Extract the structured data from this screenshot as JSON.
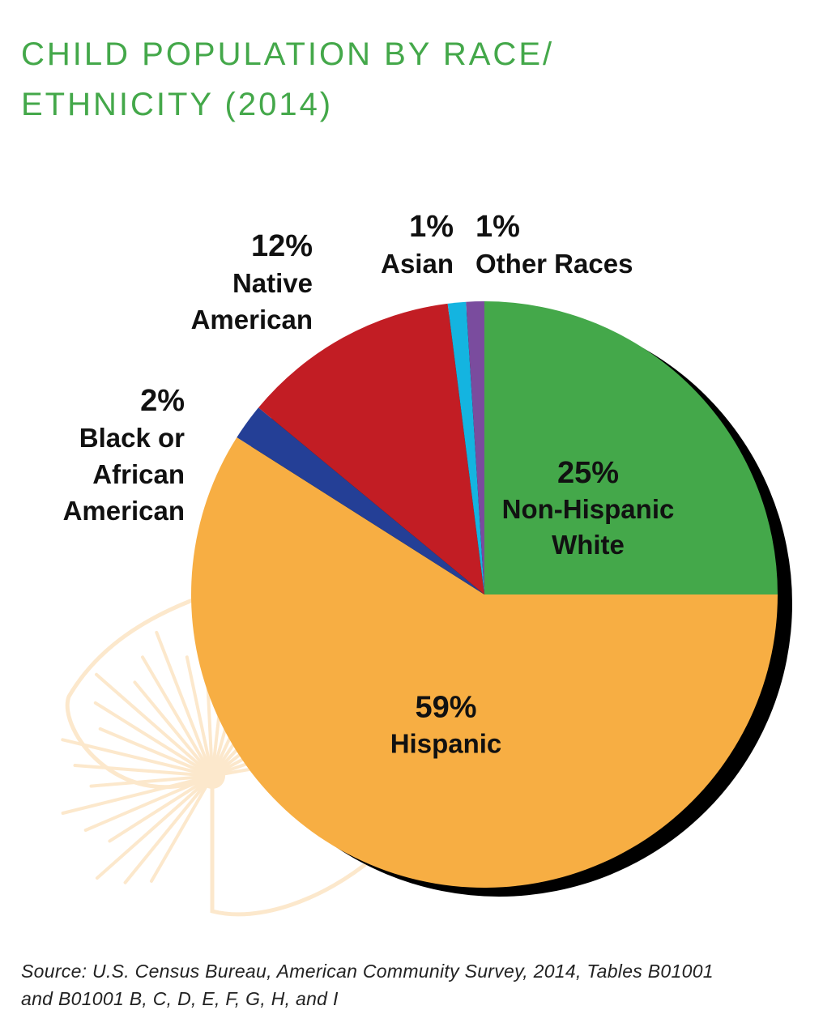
{
  "title_lines": [
    "CHILD POPULATION BY RACE/",
    "ETHNICITY (2014)"
  ],
  "source_lines": [
    "Source: U.S. Census Bureau, American Community Survey, 2014, Tables B01001",
    "and B01001 B, C, D, E, F, G, H, and I"
  ],
  "colors": {
    "title": "#44a84a",
    "shadow": "#000000",
    "decoration": "#fce8cc"
  },
  "chart_data": {
    "type": "pie",
    "title": "CHILD POPULATION BY RACE/ ETHNICITY (2014)",
    "start_angle_deg": 0,
    "direction": "clockwise",
    "slices": [
      {
        "value_label": "25%",
        "label_lines": [
          "Non-Hispanic",
          "White"
        ],
        "value": 25,
        "color": "#44a84a"
      },
      {
        "value_label": "59%",
        "label_lines": [
          "Hispanic"
        ],
        "value": 59,
        "color": "#f7ae43"
      },
      {
        "value_label": "2%",
        "label_lines": [
          "Black or",
          "African",
          "American"
        ],
        "value": 2,
        "color": "#243f96"
      },
      {
        "value_label": "12%",
        "label_lines": [
          "Native",
          "American"
        ],
        "value": 12,
        "color": "#c21d24"
      },
      {
        "value_label": "1%",
        "label_lines": [
          "Asian"
        ],
        "value": 1,
        "color": "#14b4e0"
      },
      {
        "value_label": "1%",
        "label_lines": [
          "Other Races"
        ],
        "value": 1,
        "color": "#7a4c9e"
      }
    ]
  }
}
